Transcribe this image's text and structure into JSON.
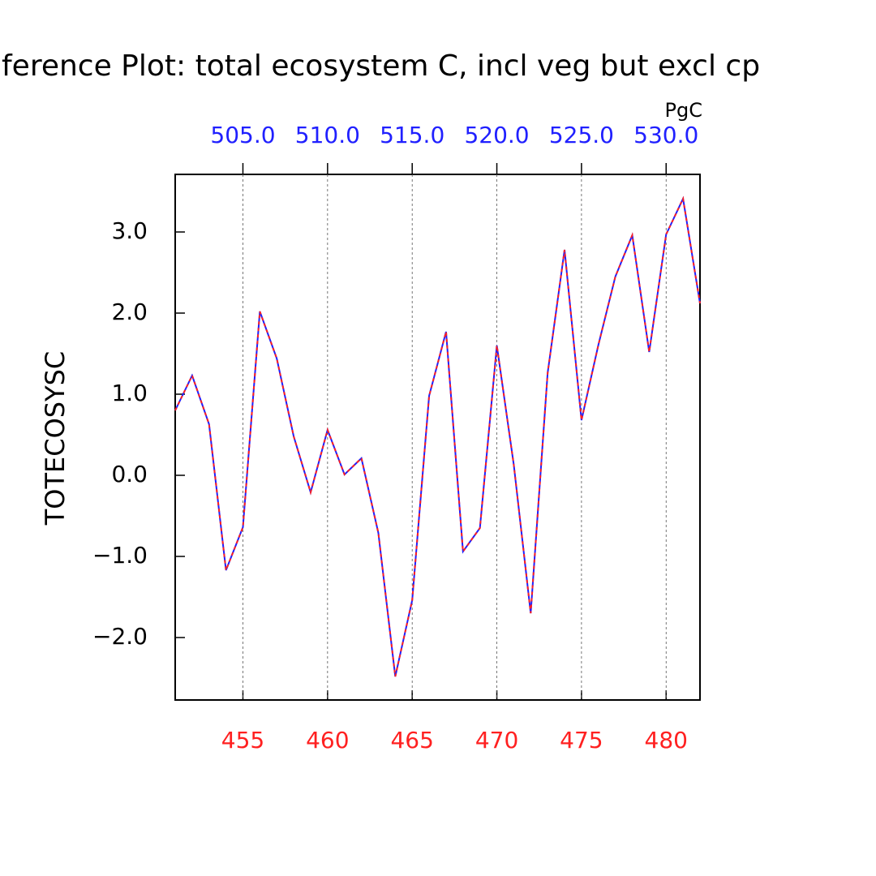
{
  "chart_data": {
    "type": "line",
    "title": "ference Plot: total ecosystem C, incl veg but excl cp",
    "ylabel": "TOTECOSYSC",
    "x2label": "PgC",
    "x": [
      451,
      452,
      453,
      454,
      455,
      456,
      457,
      458,
      459,
      460,
      461,
      462,
      463,
      464,
      465,
      466,
      467,
      468,
      469,
      470,
      471,
      472,
      473,
      474,
      475,
      476,
      477,
      478,
      479,
      480,
      481,
      482
    ],
    "series": [
      {
        "color": "#2020ff",
        "values": [
          0.8,
          1.23,
          0.63,
          -1.17,
          -0.64,
          2.02,
          1.44,
          0.48,
          -0.21,
          0.56,
          0.01,
          0.21,
          -0.71,
          -2.48,
          -1.54,
          0.98,
          1.77,
          -0.94,
          -0.65,
          1.6,
          0.13,
          -1.7,
          1.26,
          2.78,
          0.68,
          1.61,
          2.45,
          2.96,
          1.52,
          2.97,
          3.41,
          2.12
        ]
      },
      {
        "color": "#ff2020",
        "dashed": true,
        "values": [
          0.8,
          1.23,
          0.63,
          -1.17,
          -0.64,
          2.02,
          1.44,
          0.48,
          -0.21,
          0.56,
          0.01,
          0.21,
          -0.71,
          -2.48,
          -1.54,
          0.98,
          1.77,
          -0.94,
          -0.65,
          1.6,
          0.13,
          -1.7,
          1.26,
          2.78,
          0.68,
          1.61,
          2.45,
          2.96,
          1.52,
          2.97,
          3.41,
          2.12
        ]
      }
    ],
    "xlim": [
      451,
      482
    ],
    "xticks": [
      455,
      460,
      465,
      470,
      475,
      480
    ],
    "xtick_color": "#ff2020",
    "x2lim": [
      501,
      532
    ],
    "x2ticks": [
      {
        "value": 505,
        "label": "505.0"
      },
      {
        "value": 510,
        "label": "510.0"
      },
      {
        "value": 515,
        "label": "515.0"
      },
      {
        "value": 520,
        "label": "520.0"
      },
      {
        "value": 525,
        "label": "525.0"
      },
      {
        "value": 530,
        "label": "530.0"
      }
    ],
    "x2tick_color": "#2020ff",
    "ylim": [
      -2.77,
      3.71
    ],
    "yticks": [
      {
        "value": -2,
        "label": "−2.0"
      },
      {
        "value": -1,
        "label": "−1.0"
      },
      {
        "value": 0,
        "label": "0.0"
      },
      {
        "value": 1,
        "label": "1.0"
      },
      {
        "value": 2,
        "label": "2.0"
      },
      {
        "value": 3,
        "label": "3.0"
      }
    ],
    "grid": true
  }
}
